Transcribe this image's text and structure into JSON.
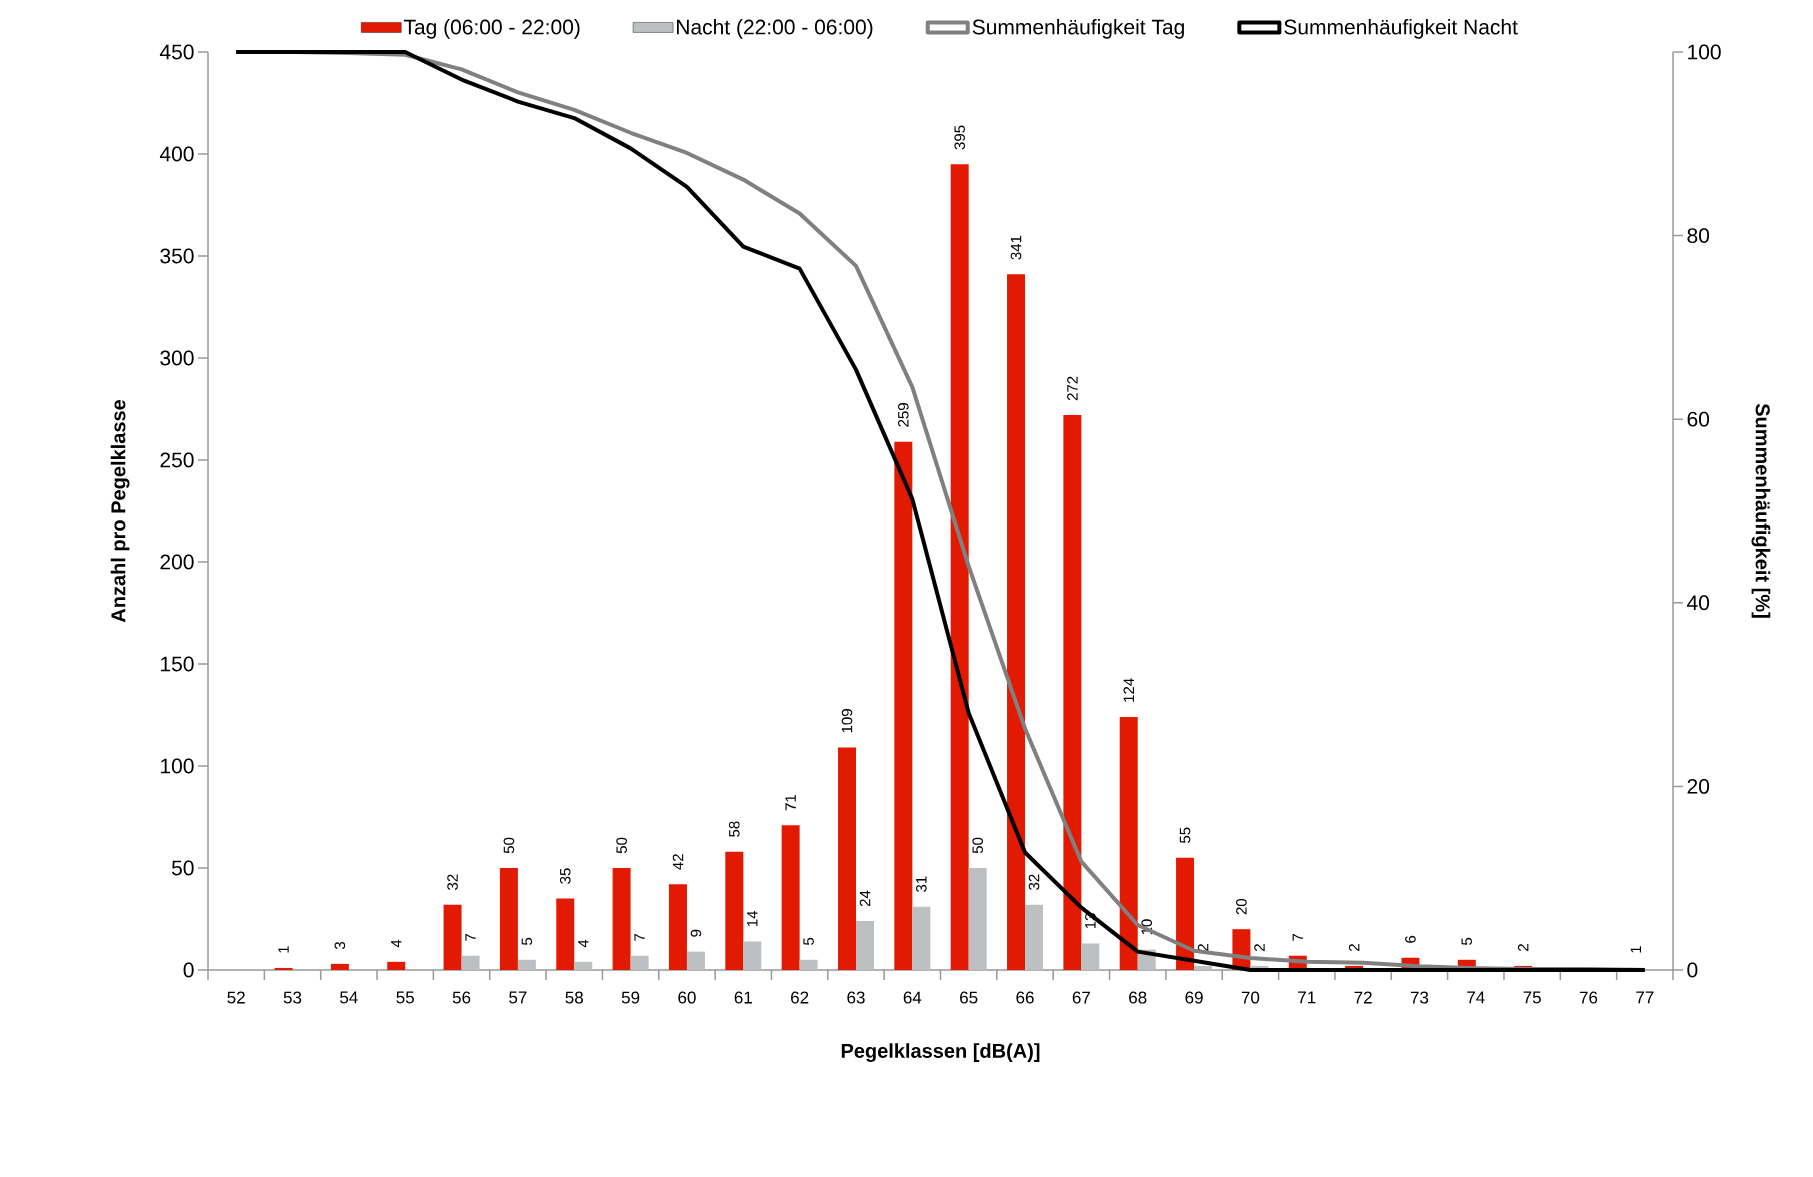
{
  "chart_data": {
    "type": "bar",
    "categories": [
      "52",
      "53",
      "54",
      "55",
      "56",
      "57",
      "58",
      "59",
      "60",
      "61",
      "62",
      "63",
      "64",
      "65",
      "66",
      "67",
      "68",
      "69",
      "70",
      "71",
      "72",
      "73",
      "74",
      "75",
      "76",
      "77"
    ],
    "series": [
      {
        "name": "Tag (06:00 - 22:00)",
        "color": "#e31a02",
        "values": [
          null,
          1,
          3,
          4,
          32,
          50,
          35,
          50,
          42,
          58,
          71,
          109,
          259,
          395,
          341,
          272,
          124,
          55,
          20,
          7,
          2,
          6,
          5,
          2,
          null,
          1
        ],
        "value_labels": [
          null,
          "1",
          "3",
          "4",
          "32",
          "50",
          "35",
          "50",
          "42",
          "58",
          "71",
          "109",
          "259",
          "395",
          "341",
          "272",
          "124",
          "55",
          "20",
          "7",
          "2",
          "6",
          "5",
          "2",
          null,
          "1"
        ]
      },
      {
        "name": "Nacht (22:00 - 06:00)",
        "color": "#bcc0c2",
        "values": [
          null,
          null,
          null,
          null,
          7,
          5,
          4,
          7,
          9,
          14,
          5,
          24,
          31,
          50,
          32,
          13,
          10,
          2,
          2,
          null,
          null,
          null,
          null,
          null,
          null,
          null
        ],
        "value_labels": [
          null,
          null,
          null,
          null,
          "7",
          "5",
          "4",
          "7",
          "9",
          "14",
          "5",
          "24",
          "31",
          "50",
          "32",
          "13",
          "10",
          "2",
          "2",
          null,
          null,
          null,
          null,
          null,
          null,
          null
        ]
      },
      {
        "name": "Summenhäufigkeit Tag",
        "type": "line",
        "axis": "y2",
        "color": "#808080",
        "values": [
          100,
          100,
          99.9,
          99.7,
          98.1,
          95.6,
          93.7,
          91.2,
          89.0,
          86.1,
          82.4,
          76.7,
          63.5,
          44.0,
          26.3,
          11.8,
          4.9,
          2.1,
          1.3,
          0.9,
          0.8,
          0.4,
          0.2,
          0.1,
          0.1,
          0
        ]
      },
      {
        "name": "Summenhäufigkeit Nacht",
        "type": "line",
        "axis": "y2",
        "color": "#000000",
        "values": [
          100,
          100,
          100,
          100,
          97.0,
          94.6,
          92.8,
          89.5,
          85.3,
          78.8,
          76.4,
          65.4,
          51.3,
          28.0,
          12.8,
          6.8,
          2.0,
          1.0,
          0,
          0,
          0,
          0,
          0,
          0,
          0,
          0
        ]
      }
    ],
    "xlabel": "Pegelklassen [dB(A)]",
    "ylabel": "Anzahl pro Pegelklasse",
    "y2label": "Summenhäufigkeit [%]",
    "ylim": [
      0,
      450
    ],
    "yticks": [
      0,
      50,
      100,
      150,
      200,
      250,
      300,
      350,
      400,
      450
    ],
    "y2lim": [
      0,
      100
    ],
    "y2ticks": [
      0,
      20,
      40,
      60,
      80,
      100
    ],
    "legend": "top"
  }
}
